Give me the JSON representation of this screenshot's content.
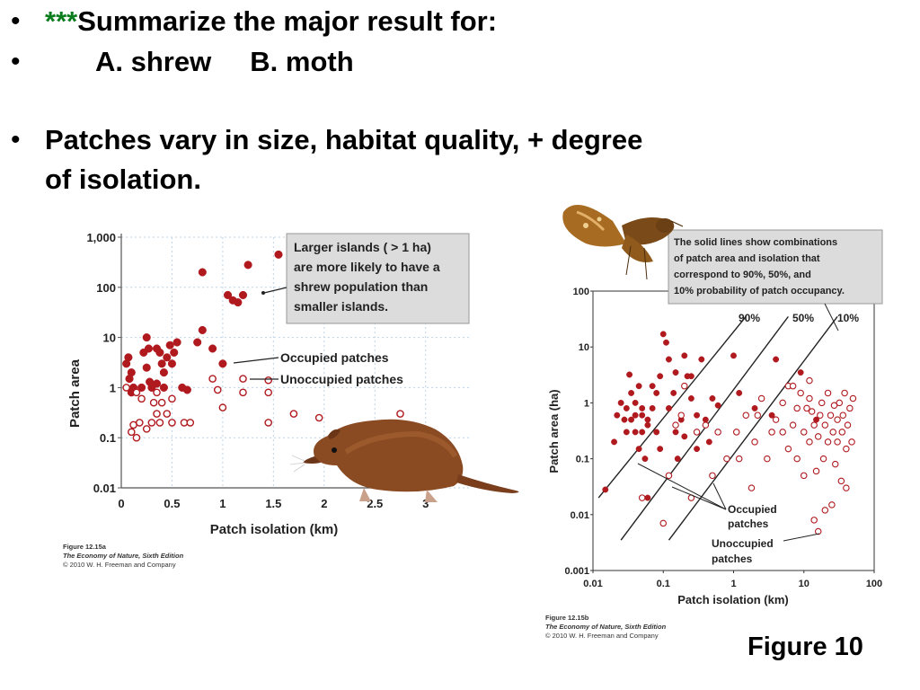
{
  "slide": {
    "bullet1_stars": "***",
    "bullet1_text": "Summarize the major result for:",
    "bullet2_text": "A. shrew     B. moth",
    "bullet3_line1": "Patches vary in size, habitat quality, + degree",
    "bullet3_line2": "of isolation.",
    "figure_label": "Figure 10",
    "bullet_glyph": "•"
  },
  "colors": {
    "point": "#b01a1f",
    "stars": "#0a7d1e",
    "callout_bg": "#dcdcdc",
    "grid": "#bfd3e6"
  },
  "icons": [
    "shrew-illustration",
    "moth-illustration"
  ],
  "chart_data": [
    {
      "type": "scatter",
      "title": "",
      "xlabel": "Patch isolation (km)",
      "ylabel": "Patch area",
      "x_ticks": [
        "0",
        "0.5",
        "1",
        "1.5",
        "2",
        "2.5",
        "3"
      ],
      "y_ticks": [
        "0.01",
        "0.1",
        "1",
        "10",
        "100",
        "1,000"
      ],
      "xlim": [
        0,
        3.1
      ],
      "ylim": [
        0.01,
        1000
      ],
      "y_scale": "log",
      "grid": true,
      "callout": [
        "Larger islands ( > 1 ha)",
        "are more likely to have a",
        "shrew population than",
        "smaller islands."
      ],
      "legend": {
        "occupied": "Occupied patches",
        "unoccupied": "Unoccupied patches"
      },
      "caption": {
        "figure": "Figure 12.15a",
        "book": "The Economy of Nature, Sixth Edition",
        "copyright": "© 2010 W. H. Freeman and Company"
      },
      "series": [
        {
          "name": "Occupied patches",
          "marker": "filled",
          "points": [
            [
              0.05,
              3
            ],
            [
              0.07,
              4
            ],
            [
              0.08,
              1.5
            ],
            [
              0.1,
              2
            ],
            [
              0.12,
              1
            ],
            [
              0.1,
              0.8
            ],
            [
              0.2,
              1
            ],
            [
              0.22,
              5
            ],
            [
              0.25,
              10
            ],
            [
              0.27,
              6
            ],
            [
              0.25,
              2.5
            ],
            [
              0.3,
              1
            ],
            [
              0.35,
              6
            ],
            [
              0.38,
              5
            ],
            [
              0.4,
              3
            ],
            [
              0.42,
              2
            ],
            [
              0.45,
              4
            ],
            [
              0.48,
              7
            ],
            [
              0.5,
              3
            ],
            [
              0.52,
              5
            ],
            [
              0.55,
              8
            ],
            [
              0.6,
              1
            ],
            [
              0.65,
              0.9
            ],
            [
              0.75,
              8
            ],
            [
              0.8,
              14
            ],
            [
              0.9,
              6
            ],
            [
              1.0,
              3
            ],
            [
              0.8,
              200
            ],
            [
              1.05,
              70
            ],
            [
              1.1,
              55
            ],
            [
              1.15,
              50
            ],
            [
              1.2,
              70
            ],
            [
              1.25,
              280
            ],
            [
              1.55,
              450
            ],
            [
              0.35,
              1.2
            ],
            [
              0.42,
              1
            ],
            [
              0.28,
              1.3
            ]
          ]
        },
        {
          "name": "Unoccupied patches",
          "marker": "open",
          "points": [
            [
              0.05,
              1
            ],
            [
              0.1,
              0.13
            ],
            [
              0.12,
              0.18
            ],
            [
              0.15,
              0.1
            ],
            [
              0.15,
              0.8
            ],
            [
              0.18,
              0.2
            ],
            [
              0.2,
              0.6
            ],
            [
              0.25,
              0.15
            ],
            [
              0.3,
              0.2
            ],
            [
              0.32,
              0.5
            ],
            [
              0.35,
              0.8
            ],
            [
              0.35,
              0.3
            ],
            [
              0.38,
              0.2
            ],
            [
              0.4,
              0.5
            ],
            [
              0.45,
              0.3
            ],
            [
              0.5,
              0.6
            ],
            [
              0.5,
              0.2
            ],
            [
              0.62,
              0.2
            ],
            [
              0.68,
              0.2
            ],
            [
              0.9,
              1.5
            ],
            [
              0.95,
              0.9
            ],
            [
              1.0,
              0.4
            ],
            [
              1.2,
              0.8
            ],
            [
              1.2,
              1.5
            ],
            [
              1.45,
              1.4
            ],
            [
              1.45,
              0.8
            ],
            [
              1.45,
              0.2
            ],
            [
              1.7,
              0.3
            ],
            [
              1.95,
              0.25
            ],
            [
              2.75,
              0.3
            ]
          ]
        }
      ]
    },
    {
      "type": "scatter",
      "title": "",
      "xlabel": "Patch isolation (km)",
      "ylabel": "Patch area (ha)",
      "x_scale": "log",
      "y_scale": "log",
      "x_ticks": [
        "0.01",
        "0.1",
        "1",
        "10",
        "100"
      ],
      "y_ticks": [
        "0.001",
        "0.01",
        "0.1",
        "1",
        "10",
        "100"
      ],
      "xlim": [
        0.01,
        100
      ],
      "ylim": [
        0.001,
        100
      ],
      "callout": [
        "The solid lines show combinations",
        "of patch area and isolation that",
        "correspond to 90%, 50%, and",
        "10% probability of patch occupancy."
      ],
      "line_labels": [
        "90%",
        "50%",
        "10%"
      ],
      "annotations": [
        "Occupied",
        "patches",
        "Unoccupied",
        "patches"
      ],
      "caption": {
        "figure": "Figure 12.15b",
        "book": "The Economy of Nature, Sixth Edition",
        "copyright": "© 2010 W. H. Freeman and Company"
      },
      "lines": [
        {
          "label": "90%",
          "from": [
            0.012,
            0.02
          ],
          "to": [
            1.5,
            35
          ]
        },
        {
          "label": "50%",
          "from": [
            0.025,
            0.0035
          ],
          "to": [
            6,
            35
          ]
        },
        {
          "label": "10%",
          "from": [
            0.12,
            0.0035
          ],
          "to": [
            30,
            35
          ]
        }
      ],
      "series": [
        {
          "name": "Occupied patches",
          "marker": "filled",
          "points": [
            [
              0.015,
              0.028
            ],
            [
              0.02,
              0.2
            ],
            [
              0.022,
              0.6
            ],
            [
              0.025,
              1
            ],
            [
              0.028,
              0.5
            ],
            [
              0.03,
              0.3
            ],
            [
              0.03,
              0.8
            ],
            [
              0.033,
              3.2
            ],
            [
              0.035,
              0.5
            ],
            [
              0.035,
              1.5
            ],
            [
              0.04,
              1
            ],
            [
              0.04,
              0.3
            ],
            [
              0.04,
              0.6
            ],
            [
              0.045,
              2
            ],
            [
              0.045,
              0.15
            ],
            [
              0.05,
              0.8
            ],
            [
              0.05,
              0.3
            ],
            [
              0.05,
              0.6
            ],
            [
              0.055,
              0.1
            ],
            [
              0.06,
              0.02
            ],
            [
              0.06,
              0.5
            ],
            [
              0.07,
              0.8
            ],
            [
              0.08,
              0.3
            ],
            [
              0.08,
              1.5
            ],
            [
              0.09,
              0.15
            ],
            [
              0.1,
              17
            ],
            [
              0.11,
              12
            ],
            [
              0.12,
              6
            ],
            [
              0.12,
              0.8
            ],
            [
              0.14,
              1.5
            ],
            [
              0.15,
              0.3
            ],
            [
              0.16,
              0.1
            ],
            [
              0.18,
              0.5
            ],
            [
              0.2,
              0.25
            ],
            [
              0.22,
              3
            ],
            [
              0.25,
              1.2
            ],
            [
              0.3,
              0.15
            ],
            [
              0.3,
              0.6
            ],
            [
              0.35,
              6
            ],
            [
              0.4,
              0.5
            ],
            [
              0.45,
              0.2
            ],
            [
              0.6,
              0.9
            ],
            [
              1.0,
              7
            ],
            [
              1.2,
              1.5
            ],
            [
              2.0,
              0.8
            ],
            [
              3.5,
              0.6
            ],
            [
              4,
              6
            ],
            [
              9,
              3.5
            ],
            [
              15,
              0.5
            ],
            [
              0.07,
              2
            ],
            [
              0.09,
              3
            ],
            [
              0.25,
              3
            ],
            [
              0.5,
              1.2
            ],
            [
              0.2,
              7
            ],
            [
              0.15,
              3.5
            ],
            [
              0.06,
              0.4
            ]
          ]
        },
        {
          "name": "Unoccupied patches",
          "marker": "open",
          "points": [
            [
              0.05,
              0.02
            ],
            [
              0.1,
              0.007
            ],
            [
              0.12,
              0.05
            ],
            [
              0.15,
              0.4
            ],
            [
              0.18,
              0.6
            ],
            [
              0.2,
              2
            ],
            [
              0.25,
              0.02
            ],
            [
              0.3,
              0.3
            ],
            [
              0.4,
              0.4
            ],
            [
              0.5,
              0.05
            ],
            [
              0.6,
              0.3
            ],
            [
              0.8,
              0.1
            ],
            [
              1.1,
              0.3
            ],
            [
              1.2,
              0.1
            ],
            [
              1.5,
              0.6
            ],
            [
              1.8,
              0.03
            ],
            [
              2.0,
              0.2
            ],
            [
              2.2,
              0.6
            ],
            [
              2.5,
              1.2
            ],
            [
              3,
              0.1
            ],
            [
              3.5,
              0.3
            ],
            [
              4,
              0.5
            ],
            [
              5,
              0.3
            ],
            [
              5,
              1
            ],
            [
              6,
              0.15
            ],
            [
              6,
              2
            ],
            [
              7,
              0.4
            ],
            [
              8,
              0.8
            ],
            [
              8,
              0.1
            ],
            [
              9,
              1.5
            ],
            [
              10,
              0.3
            ],
            [
              10,
              0.05
            ],
            [
              11,
              0.8
            ],
            [
              12,
              1.2
            ],
            [
              12,
              0.2
            ],
            [
              14,
              0.4
            ],
            [
              14,
              0.008
            ],
            [
              15,
              0.06
            ],
            [
              16,
              0.25
            ],
            [
              17,
              0.6
            ],
            [
              18,
              1
            ],
            [
              19,
              0.1
            ],
            [
              20,
              0.4
            ],
            [
              22,
              0.2
            ],
            [
              24,
              0.6
            ],
            [
              25,
              0.015
            ],
            [
              26,
              0.3
            ],
            [
              28,
              0.08
            ],
            [
              30,
              0.5
            ],
            [
              30,
              0.2
            ],
            [
              32,
              1
            ],
            [
              34,
              0.04
            ],
            [
              35,
              0.3
            ],
            [
              36,
              0.6
            ],
            [
              38,
              1.5
            ],
            [
              40,
              0.15
            ],
            [
              42,
              0.4
            ],
            [
              45,
              0.8
            ],
            [
              48,
              0.2
            ],
            [
              50,
              1.2
            ],
            [
              16,
              0.005
            ],
            [
              12,
              2.5
            ],
            [
              22,
              1.5
            ],
            [
              7,
              2
            ],
            [
              13,
              0.7
            ],
            [
              27,
              0.9
            ],
            [
              20,
              0.012
            ],
            [
              40,
              0.03
            ]
          ]
        }
      ]
    }
  ]
}
